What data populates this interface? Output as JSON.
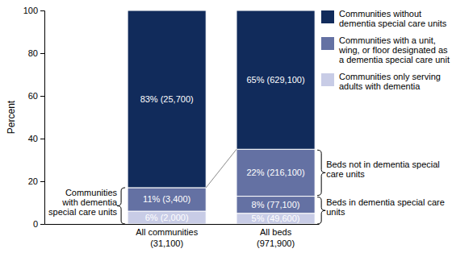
{
  "chart_data": {
    "type": "bar",
    "stacked": true,
    "data_labels": true,
    "grid": false,
    "legend": "upper right",
    "categories": [
      "All communities (31,100)",
      "All beds (971,900)"
    ],
    "y_label": "Percent",
    "ylim": [
      0,
      100
    ],
    "yticks": [
      0,
      20,
      40,
      60,
      80,
      100
    ],
    "series": [
      {
        "name": "Communities only serving adults with dementia",
        "color": "#c8cce6",
        "values": [
          6,
          5
        ],
        "value_labels": [
          "6% (2,000)",
          "5% (49,600)"
        ]
      },
      {
        "name": "Communities with a unit, wing, or floor designated as a dementia special care unit",
        "color": "#6471a3",
        "values": [
          11,
          8
        ],
        "value_labels": [
          "11% (3,400)",
          "8% (77,100)"
        ]
      },
      {
        "color": "#6471a3",
        "values": [
          null,
          22
        ],
        "value_labels": [
          null,
          "22% (216,100)"
        ]
      },
      {
        "name": "Communities without dementia special care units",
        "color": "#112b5b",
        "values": [
          83,
          65
        ],
        "value_labels": [
          "83% (25,700)",
          "65% (629,100)"
        ]
      }
    ],
    "annotations": [
      "Communities with dementia special care units",
      "Beds not in dementia special care units",
      "Beds in dementia special care units"
    ]
  }
}
